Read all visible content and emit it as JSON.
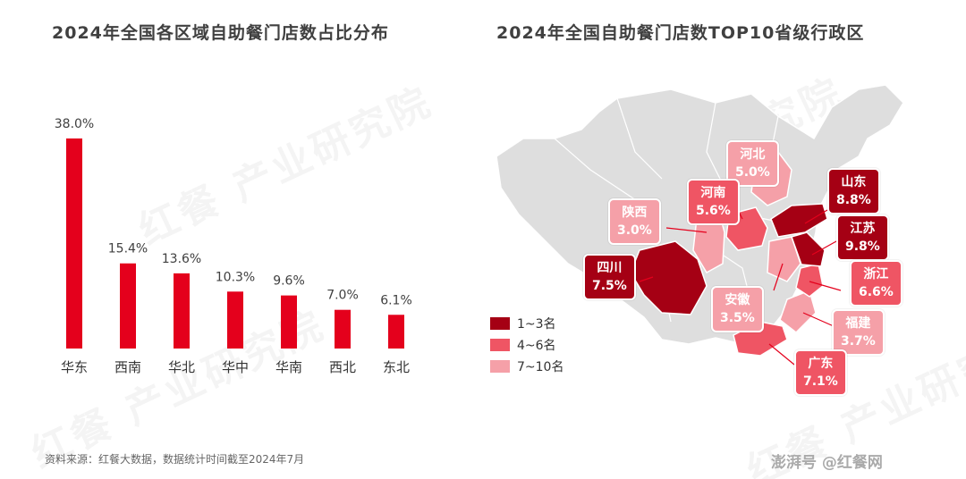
{
  "left_title": "2024年全国各区域自助餐门店数占比分布",
  "right_title": "2024年全国自助餐门店数TOP10省级行政区",
  "watermark": "红餐 产业研究院",
  "source": "资料来源：红餐大数据，数据统计时间截至2024年7月",
  "brand": "澎湃号  @红餐网",
  "colors": {
    "bar": "#e4001c",
    "tier1": "#a50014",
    "tier2": "#ef5564",
    "tier3": "#f5a0a8"
  },
  "chart_data": [
    {
      "type": "bar",
      "title": "2024年全国各区域自助餐门店数占比分布",
      "categories": [
        "华东",
        "西南",
        "华北",
        "华中",
        "华南",
        "西北",
        "东北"
      ],
      "values": [
        38.0,
        15.4,
        13.6,
        10.3,
        9.6,
        7.0,
        6.1
      ],
      "value_labels": [
        "38.0%",
        "15.4%",
        "13.6%",
        "10.3%",
        "9.6%",
        "7.0%",
        "6.1%"
      ],
      "ylim": [
        0,
        40
      ],
      "grid": false
    },
    {
      "type": "map",
      "title": "2024年全国自助餐门店数TOP10省级行政区",
      "provinces": [
        {
          "name": "山东",
          "value": "8.8%",
          "tier": 1
        },
        {
          "name": "江苏",
          "value": "9.8%",
          "tier": 1
        },
        {
          "name": "四川",
          "value": "7.5%",
          "tier": 1
        },
        {
          "name": "河南",
          "value": "5.6%",
          "tier": 2
        },
        {
          "name": "浙江",
          "value": "6.6%",
          "tier": 2
        },
        {
          "name": "广东",
          "value": "7.1%",
          "tier": 2
        },
        {
          "name": "河北",
          "value": "5.0%",
          "tier": 3
        },
        {
          "name": "陕西",
          "value": "3.0%",
          "tier": 3
        },
        {
          "name": "安徽",
          "value": "3.5%",
          "tier": 3
        },
        {
          "name": "福建",
          "value": "3.7%",
          "tier": 3
        }
      ],
      "legend": [
        {
          "label": "1~3名",
          "tier": 1
        },
        {
          "label": "4~6名",
          "tier": 2
        },
        {
          "label": "7~10名",
          "tier": 3
        }
      ]
    }
  ]
}
